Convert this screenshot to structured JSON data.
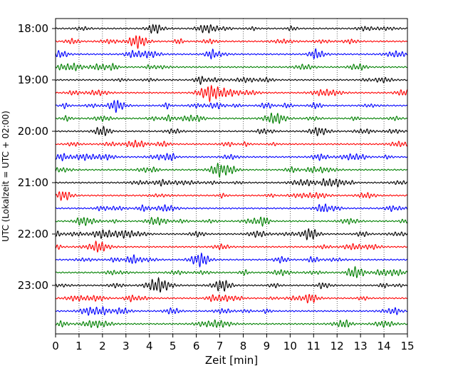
{
  "chart_data": {
    "type": "line",
    "title": "",
    "xlabel": "Zeit  [min]",
    "ylabel": "UTC (Lokalzeit = UTC + 02:00)",
    "xlim": [
      0,
      15
    ],
    "x_ticks": [
      "0",
      "1",
      "2",
      "3",
      "4",
      "5",
      "6",
      "7",
      "8",
      "9",
      "10",
      "11",
      "12",
      "13",
      "14",
      "15"
    ],
    "y_tick_labels": [
      "18:00",
      "19:00",
      "20:00",
      "21:00",
      "22:00",
      "23:00"
    ],
    "grid": "vertical-dotted",
    "legend": "none",
    "trace_interval_min": 15,
    "first_trace": "18:00",
    "trace_count": 24,
    "trace_colors": [
      "#000000",
      "#ff0000",
      "#0000ff",
      "#008000"
    ],
    "events": [
      {
        "trace": "23:00",
        "x_min": 3.5,
        "x_max": 5.3,
        "description": "larger amplitude burst"
      }
    ]
  }
}
